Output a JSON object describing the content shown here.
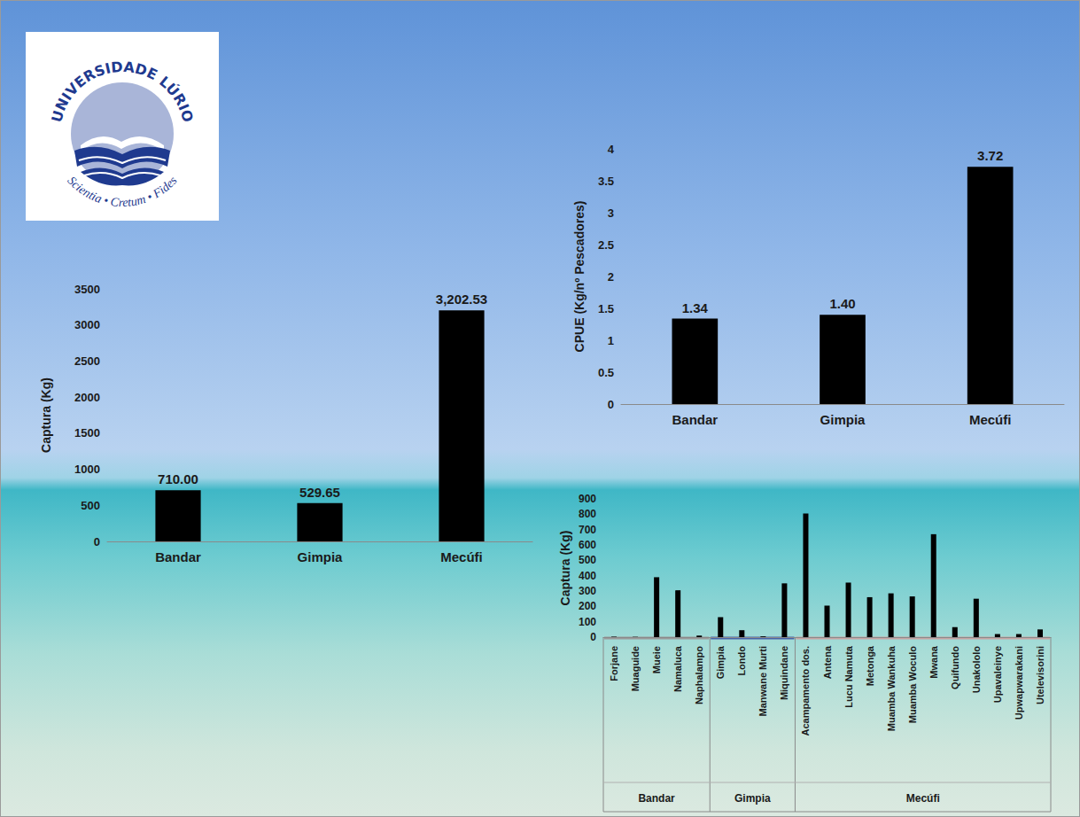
{
  "logo": {
    "title": "UNIVERSIDADE LÚRIO",
    "motto": "Scientia • Cretum • Fides"
  },
  "chart_data": [
    {
      "type": "bar",
      "ylabel": "Captura (Kg)",
      "categories": [
        "Bandar",
        "Gimpia",
        "Mecúfi"
      ],
      "values": [
        710.0,
        529.65,
        3202.53
      ],
      "value_labels": [
        "710.00",
        "529.65",
        "3,202.53"
      ],
      "color": "#000000",
      "ylim": [
        0,
        3500
      ],
      "yticks": [
        0,
        500,
        1000,
        1500,
        2000,
        2500,
        3000,
        3500
      ],
      "data_labels": true,
      "grid": false
    },
    {
      "type": "bar",
      "ylabel": "CPUE (Kg/nº Pescadores)",
      "categories": [
        "Bandar",
        "Gimpia",
        "Mecúfi"
      ],
      "values": [
        1.34,
        1.4,
        3.72
      ],
      "value_labels": [
        "1.34",
        "1.40",
        "3.72"
      ],
      "color": "#000000",
      "ylim": [
        0,
        4
      ],
      "yticks": [
        0,
        0.5,
        1,
        1.5,
        2,
        2.5,
        3,
        3.5,
        4
      ],
      "data_labels": true,
      "grid": false
    },
    {
      "type": "bar",
      "ylabel": "Captura (Kg)",
      "categories": [
        "Forjane",
        "Muaguide",
        "Mueie",
        "Namaluca",
        "Naphalampo",
        "Gimpia",
        "Londo",
        "Manwane Murti",
        "Miquindane",
        "Acampamento dos.",
        "Antena",
        "Lucu Namuta",
        "Metonga",
        "Muamba Wankuha",
        "Muamba Woculo",
        "Mwana",
        "Quifundo",
        "Unakololo",
        "Upavaleinye",
        "Upwapwarakani",
        "Utelevisorini"
      ],
      "values": [
        3,
        2,
        390,
        305,
        10,
        130,
        45,
        5,
        350,
        805,
        205,
        355,
        260,
        285,
        265,
        670,
        65,
        250,
        20,
        20,
        50
      ],
      "groups": [
        {
          "label": "Bandar",
          "size": 5
        },
        {
          "label": "Gimpia",
          "size": 4
        },
        {
          "label": "Mecúfi",
          "size": 12
        }
      ],
      "color": "#000000",
      "ylim": [
        0,
        900
      ],
      "yticks": [
        0,
        100,
        200,
        300,
        400,
        500,
        600,
        700,
        800,
        900
      ],
      "data_labels": false,
      "grid": false
    }
  ]
}
